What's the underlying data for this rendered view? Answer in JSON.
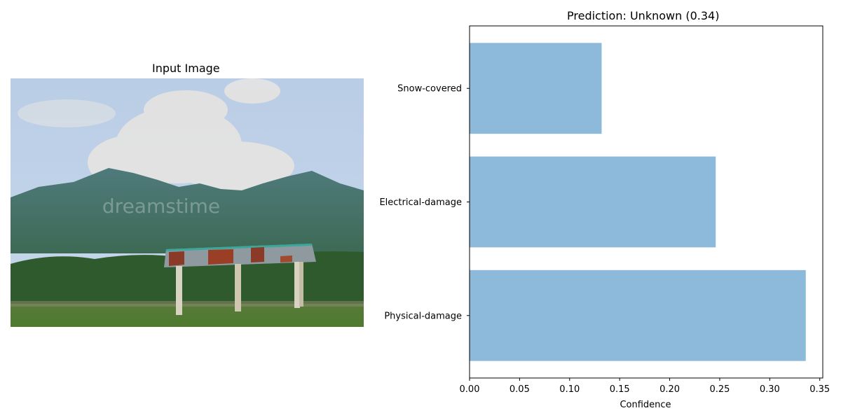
{
  "image_panel": {
    "title": "Input Image",
    "watermark": "dreamstime"
  },
  "chart_panel": {
    "title": "Prediction: Unknown (0.34)"
  },
  "chart_data": {
    "type": "bar",
    "orientation": "horizontal",
    "title": "Prediction: Unknown (0.34)",
    "xlabel": "Confidence",
    "ylabel": "",
    "categories": [
      "Physical-damage",
      "Electrical-damage",
      "Snow-covered"
    ],
    "values": [
      0.336,
      0.246,
      0.132
    ],
    "xlim": [
      0,
      0.353
    ],
    "xticks": [
      "0.00",
      "0.05",
      "0.10",
      "0.15",
      "0.20",
      "0.25",
      "0.30",
      "0.35"
    ],
    "bar_color": "#8db9da",
    "grid": false
  }
}
